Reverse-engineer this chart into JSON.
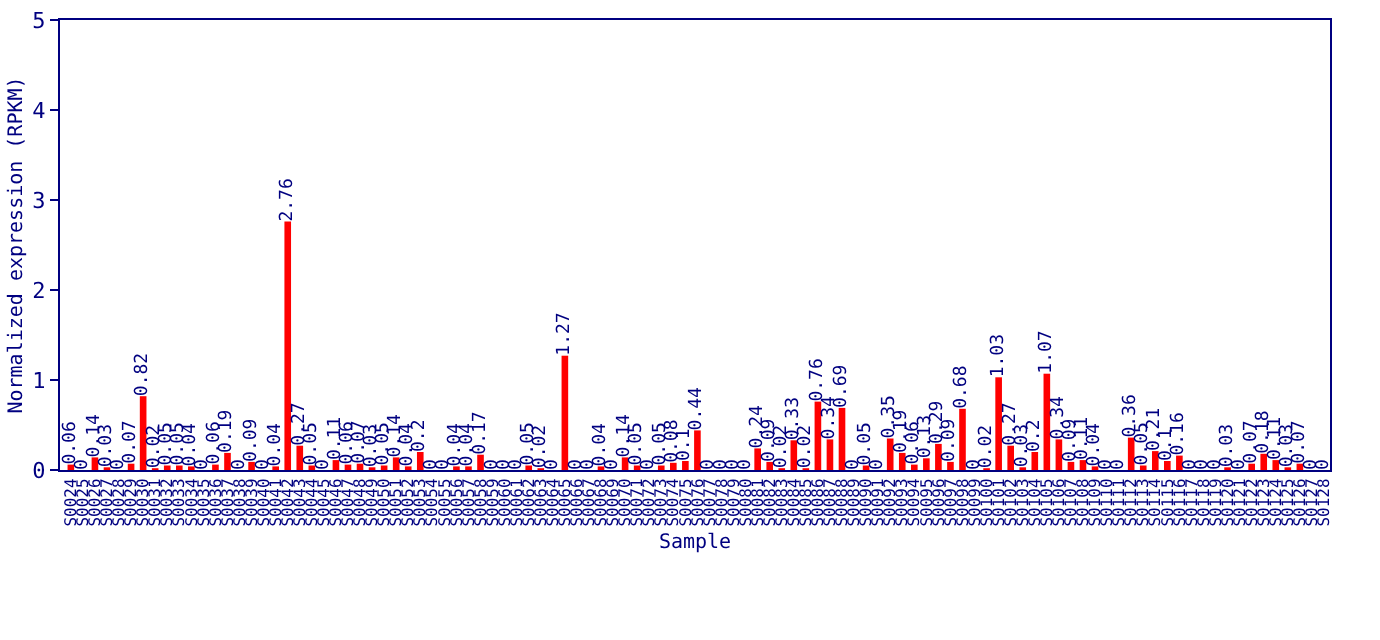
{
  "chart_data": {
    "type": "bar",
    "xlabel": "Sample",
    "ylabel": "Normalized expression (RPKM)",
    "categories": [
      "S0024",
      "S0025",
      "S0026",
      "S0027",
      "S0028",
      "S0029",
      "S0030",
      "S0031",
      "S0032",
      "S0033",
      "S0034",
      "S0035",
      "S0036",
      "S0037",
      "S0038",
      "S0039",
      "S0040",
      "S0041",
      "S0042",
      "S0043",
      "S0044",
      "S0045",
      "S0046",
      "S0047",
      "S0048",
      "S0049",
      "S0050",
      "S0051",
      "S0052",
      "S0053",
      "S0054",
      "S0055",
      "S0056",
      "S0057",
      "S0058",
      "S0059",
      "S0060",
      "S0061",
      "S0062",
      "S0063",
      "S0064",
      "S0065",
      "S0066",
      "S0067",
      "S0068",
      "S0069",
      "S0070",
      "S0071",
      "S0072",
      "S0073",
      "S0074",
      "S0075",
      "S0076",
      "S0077",
      "S0078",
      "S0079",
      "S0080",
      "S0081",
      "S0082",
      "S0083",
      "S0084",
      "S0085",
      "S0086",
      "S0087",
      "S0088",
      "S0089",
      "S0090",
      "S0091",
      "S0092",
      "S0093",
      "S0094",
      "S0095",
      "S0096",
      "S0097",
      "S0098",
      "S0099",
      "S0100",
      "S0101",
      "S0102",
      "S0103",
      "S0104",
      "S0105",
      "S0106",
      "S0107",
      "S0108",
      "S0109",
      "S0110",
      "S0111",
      "S0112",
      "S0113",
      "S0114",
      "S0115",
      "S0116",
      "S0117",
      "S0118",
      "S0119",
      "S0120",
      "S0121",
      "S0122",
      "S0123",
      "S0124",
      "S0125",
      "S0126",
      "S0127",
      "S0128"
    ],
    "values": [
      0.06,
      0,
      0.14,
      0.03,
      0,
      0.07,
      0.82,
      0.02,
      0.05,
      0.05,
      0.04,
      0,
      0.06,
      0.19,
      0,
      0.09,
      0,
      0.04,
      2.76,
      0.27,
      0.05,
      0,
      0.11,
      0.06,
      0.07,
      0.03,
      0.05,
      0.14,
      0.04,
      0.2,
      0,
      0,
      0.04,
      0.04,
      0.17,
      0,
      0,
      0,
      0.05,
      0.02,
      0,
      1.27,
      0,
      0,
      0.04,
      0,
      0.14,
      0.05,
      0,
      0.05,
      0.08,
      0.1,
      0.44,
      0,
      0,
      0,
      0,
      0.24,
      0.09,
      0.02,
      0.33,
      0.02,
      0.76,
      0.34,
      0.69,
      0,
      0.05,
      0,
      0.35,
      0.19,
      0.06,
      0.13,
      0.29,
      0.09,
      0.68,
      0,
      0.02,
      1.03,
      0.27,
      0.03,
      0.2,
      1.07,
      0.34,
      0.09,
      0.11,
      0.04,
      0,
      0,
      0.36,
      0.05,
      0.21,
      0.1,
      0.16,
      0,
      0,
      0,
      0.03,
      0,
      0.07,
      0.18,
      0.11,
      0.03,
      0.07,
      0,
      0
    ],
    "color": "#ff0000",
    "ylim": [
      0,
      5
    ],
    "yticks": [
      0,
      1,
      2,
      3,
      4,
      5
    ],
    "grid": false,
    "data_labels": true
  }
}
